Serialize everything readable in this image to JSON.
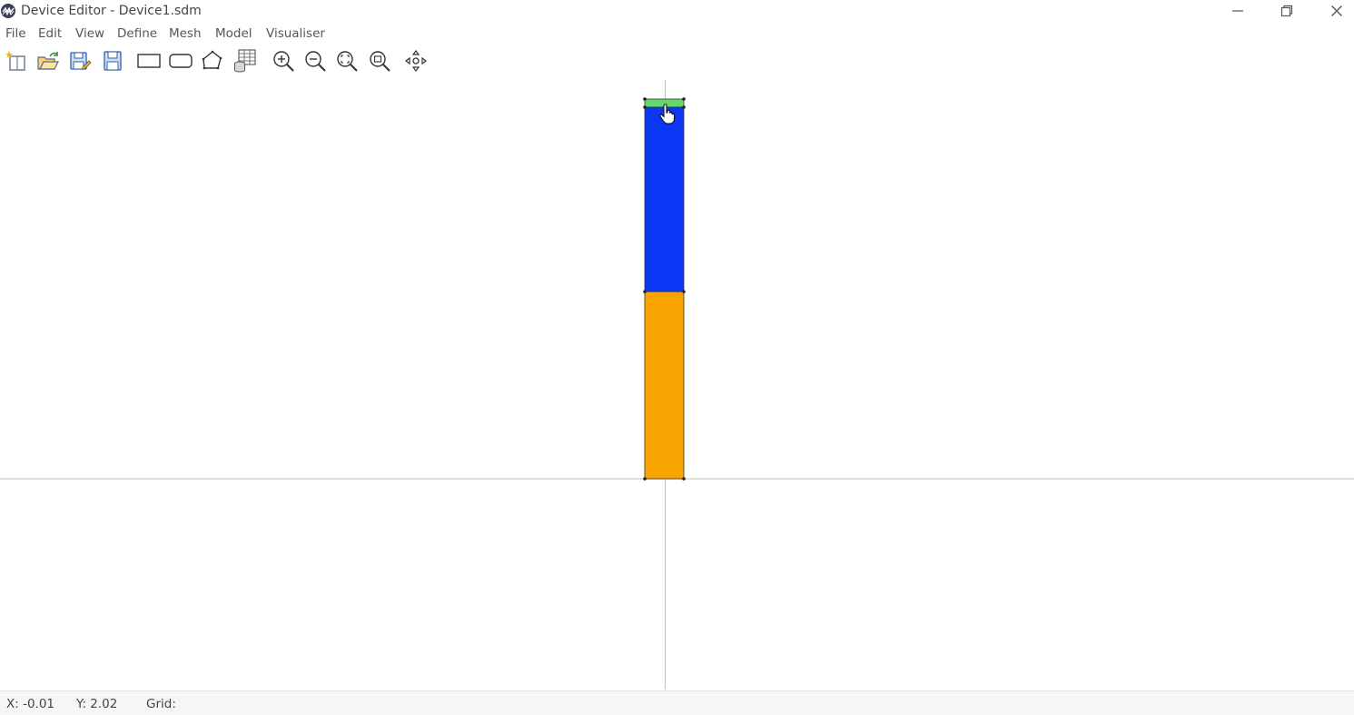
{
  "window": {
    "title": "Device Editor - Device1.sdm",
    "controls": [
      "minimize-icon",
      "maximize-icon",
      "close-icon"
    ]
  },
  "menu": {
    "items": [
      "File",
      "Edit",
      "View",
      "Define",
      "Mesh",
      "Model",
      "Visualiser"
    ]
  },
  "toolbar": {
    "icons": [
      "new-file-icon",
      "open-folder-icon",
      "save-as-icon",
      "save-icon",
      "rectangle-icon",
      "rounded-rectangle-icon",
      "polygon-icon",
      "material-database-icon",
      "zoom-in-icon",
      "zoom-out-icon",
      "zoom-fit-icon",
      "zoom-region-icon",
      "pan-icon"
    ]
  },
  "canvas": {
    "layers": [
      {
        "color": "#63d86b"
      },
      {
        "color": "#0a36f4"
      },
      {
        "color": "#f9a400"
      }
    ]
  },
  "status": {
    "x": "X: -0.01",
    "y": "Y: 2.02",
    "grid": "Grid:"
  },
  "colors": {
    "accent_green": "#63d86b",
    "layer_blue": "#0a36f4",
    "layer_orange": "#f9a400"
  }
}
